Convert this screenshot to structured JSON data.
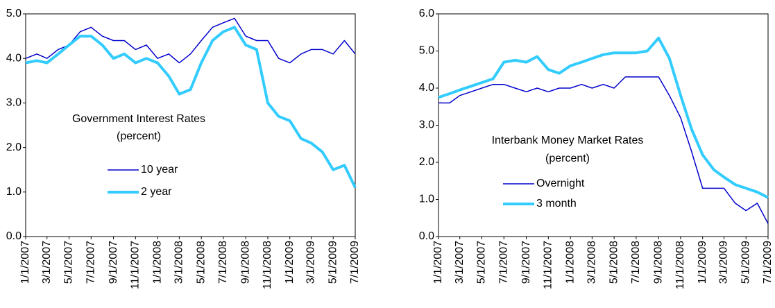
{
  "chart_data": [
    {
      "type": "line",
      "annotations": [
        "Government Interest Rates",
        "(percent)"
      ],
      "x": [
        "1/1/2007",
        "2/1/2007",
        "3/1/2007",
        "4/1/2007",
        "5/1/2007",
        "6/1/2007",
        "7/1/2007",
        "8/1/2007",
        "9/1/2007",
        "10/1/2007",
        "11/1/2007",
        "12/1/2007",
        "1/1/2008",
        "2/1/2008",
        "3/1/2008",
        "4/1/2008",
        "5/1/2008",
        "6/1/2008",
        "7/1/2008",
        "8/1/2008",
        "9/1/2008",
        "10/1/2008",
        "11/1/2008",
        "12/1/2008",
        "1/1/2009",
        "2/1/2009",
        "3/1/2009",
        "4/1/2009",
        "5/1/2009",
        "6/1/2009",
        "7/1/2009"
      ],
      "series": [
        {
          "name": "10 year",
          "color": "#0000cc",
          "values": [
            4.0,
            4.1,
            4.0,
            4.2,
            4.3,
            4.6,
            4.7,
            4.5,
            4.4,
            4.4,
            4.2,
            4.3,
            4.0,
            4.1,
            3.9,
            4.1,
            4.4,
            4.7,
            4.8,
            4.9,
            4.5,
            4.4,
            4.4,
            4.0,
            3.9,
            4.1,
            4.2,
            4.2,
            4.1,
            4.4,
            4.1
          ]
        },
        {
          "name": "2 year",
          "color": "#33ccff",
          "values": [
            3.9,
            3.95,
            3.9,
            4.1,
            4.3,
            4.5,
            4.5,
            4.3,
            4.0,
            4.1,
            3.9,
            4.0,
            3.9,
            3.6,
            3.2,
            3.3,
            3.9,
            4.4,
            4.6,
            4.7,
            4.3,
            4.2,
            3.0,
            2.7,
            2.6,
            2.2,
            2.1,
            1.9,
            1.5,
            1.6,
            1.1
          ]
        }
      ],
      "xlim": [
        "1/1/2007",
        "7/1/2009"
      ],
      "xticks": [
        "1/1/2007",
        "3/1/2007",
        "5/1/2007",
        "7/1/2007",
        "9/1/2007",
        "11/1/2007",
        "1/1/2008",
        "3/1/2008",
        "5/1/2008",
        "7/1/2008",
        "9/1/2008",
        "11/1/2008",
        "1/1/2009",
        "3/1/2009",
        "5/1/2009",
        "7/1/2009"
      ],
      "ylim": [
        0,
        5
      ],
      "yticks": [
        {
          "value": 0,
          "label": "0.0"
        },
        {
          "value": 1,
          "label": "1.0"
        },
        {
          "value": 2,
          "label": "2.0"
        },
        {
          "value": 3,
          "label": "3.0"
        },
        {
          "value": 4,
          "label": "4.0"
        },
        {
          "value": 5,
          "label": "5.0"
        }
      ]
    },
    {
      "type": "line",
      "annotations": [
        "Interbank Money Market Rates",
        "(percent)"
      ],
      "x": [
        "1/1/2007",
        "2/1/2007",
        "3/1/2007",
        "4/1/2007",
        "5/1/2007",
        "6/1/2007",
        "7/1/2007",
        "8/1/2007",
        "9/1/2007",
        "10/1/2007",
        "11/1/2007",
        "12/1/2007",
        "1/1/2008",
        "2/1/2008",
        "3/1/2008",
        "4/1/2008",
        "5/1/2008",
        "6/1/2008",
        "7/1/2008",
        "8/1/2008",
        "9/1/2008",
        "10/1/2008",
        "11/1/2008",
        "12/1/2008",
        "1/1/2009",
        "2/1/2009",
        "3/1/2009",
        "4/1/2009",
        "5/1/2009",
        "6/1/2009",
        "7/1/2009"
      ],
      "series": [
        {
          "name": "Overnight",
          "color": "#0000cc",
          "values": [
            3.6,
            3.6,
            3.8,
            3.9,
            4.0,
            4.1,
            4.1,
            4.0,
            3.9,
            4.0,
            3.9,
            4.0,
            4.0,
            4.1,
            4.0,
            4.1,
            4.0,
            4.3,
            4.3,
            4.3,
            4.3,
            3.8,
            3.2,
            2.3,
            1.3,
            1.3,
            1.3,
            0.9,
            0.7,
            0.9,
            0.35
          ]
        },
        {
          "name": "3 month",
          "color": "#33ccff",
          "values": [
            3.75,
            3.85,
            3.95,
            4.05,
            4.15,
            4.25,
            4.7,
            4.75,
            4.7,
            4.85,
            4.5,
            4.4,
            4.6,
            4.7,
            4.8,
            4.9,
            4.95,
            4.95,
            4.95,
            5.0,
            5.35,
            4.8,
            3.8,
            2.9,
            2.2,
            1.8,
            1.6,
            1.4,
            1.3,
            1.2,
            1.05
          ]
        }
      ],
      "xlim": [
        "1/1/2007",
        "7/1/2009"
      ],
      "xticks": [
        "1/1/2007",
        "3/1/2007",
        "5/1/2007",
        "7/1/2007",
        "9/1/2007",
        "11/1/2007",
        "1/1/2008",
        "3/1/2008",
        "5/1/2008",
        "7/1/2008",
        "9/1/2008",
        "11/1/2008",
        "1/1/2009",
        "3/1/2009",
        "5/1/2009",
        "7/1/2009"
      ],
      "ylim": [
        0,
        6
      ],
      "yticks": [
        {
          "value": 0,
          "label": "0.0"
        },
        {
          "value": 1,
          "label": "1.0"
        },
        {
          "value": 2,
          "label": "2.0"
        },
        {
          "value": 3,
          "label": "3.0"
        },
        {
          "value": 4,
          "label": "4.0"
        },
        {
          "value": 5,
          "label": "5.0"
        },
        {
          "value": 6,
          "label": "6.0"
        }
      ]
    }
  ]
}
